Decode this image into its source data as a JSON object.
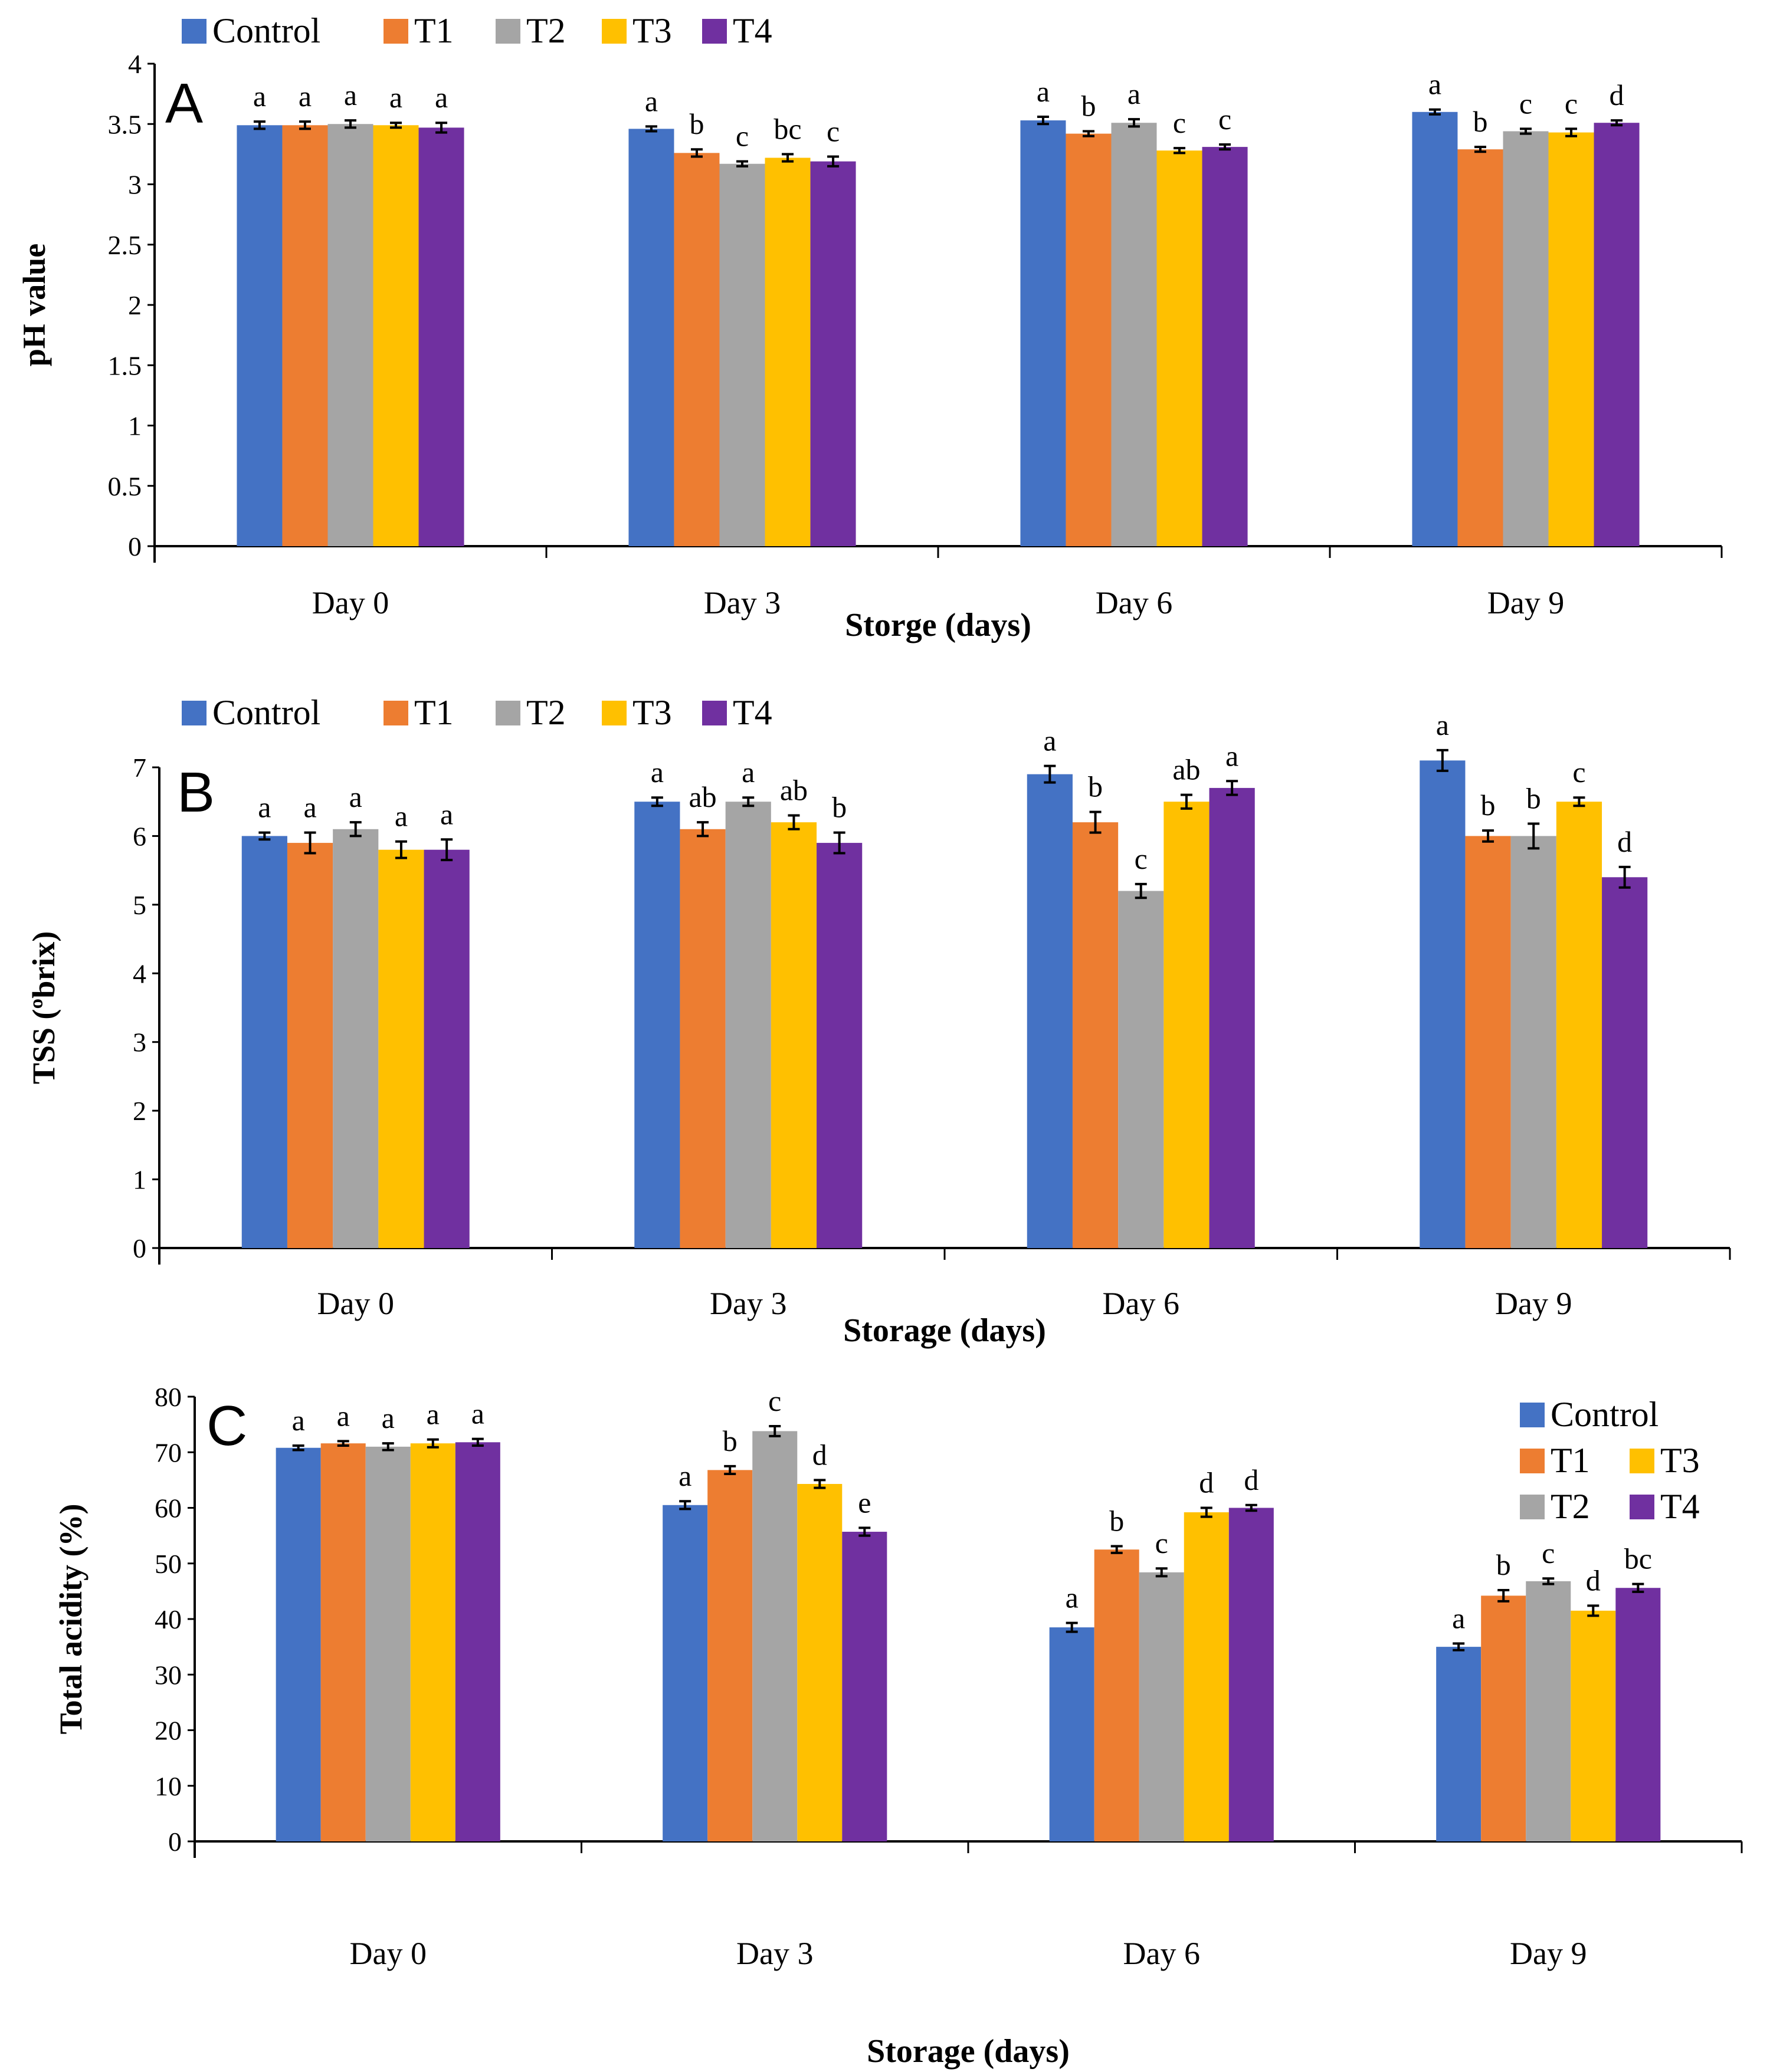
{
  "colors": {
    "Control": "#4472C4",
    "T1": "#ED7D31",
    "T2": "#A5A5A5",
    "T3": "#FFC000",
    "T4": "#7030A0"
  },
  "chart_data": [
    {
      "type": "bar",
      "panel_label": "A",
      "categories": [
        "Day 0",
        "Day 3",
        "Day 6",
        "Day 9"
      ],
      "xlabel": "Storge (days)",
      "ylabel": "pH value",
      "ylim": [
        0,
        4
      ],
      "yticks": [
        "0",
        "0.5",
        "1",
        "1.5",
        "2",
        "2.5",
        "3",
        "3.5",
        "4"
      ],
      "ytick_values": [
        0,
        0.5,
        1,
        1.5,
        2,
        2.5,
        3,
        3.5,
        4
      ],
      "legend": [
        "Control",
        "T1",
        "T2",
        "T3",
        "T4"
      ],
      "legend_position": "top-left",
      "series": [
        {
          "name": "Control",
          "values": [
            3.49,
            3.46,
            3.53,
            3.6
          ],
          "errors": [
            0.03,
            0.02,
            0.03,
            0.02
          ],
          "letters": [
            "a",
            "a",
            "a",
            "a"
          ]
        },
        {
          "name": "T1",
          "values": [
            3.49,
            3.26,
            3.42,
            3.29
          ],
          "errors": [
            0.03,
            0.03,
            0.02,
            0.02
          ],
          "letters": [
            "a",
            "b",
            "b",
            "b"
          ]
        },
        {
          "name": "T2",
          "values": [
            3.5,
            3.17,
            3.51,
            3.44
          ],
          "errors": [
            0.03,
            0.02,
            0.03,
            0.02
          ],
          "letters": [
            "a",
            "c",
            "a",
            "c"
          ]
        },
        {
          "name": "T3",
          "values": [
            3.49,
            3.22,
            3.28,
            3.43
          ],
          "errors": [
            0.02,
            0.03,
            0.02,
            0.03
          ],
          "letters": [
            "a",
            "bc",
            "c",
            "c"
          ]
        },
        {
          "name": "T4",
          "values": [
            3.47,
            3.19,
            3.31,
            3.51
          ],
          "errors": [
            0.04,
            0.04,
            0.02,
            0.02
          ],
          "letters": [
            "a",
            "c",
            "c",
            "d"
          ]
        }
      ]
    },
    {
      "type": "bar",
      "panel_label": "B",
      "categories": [
        "Day 0",
        "Day 3",
        "Day 6",
        "Day 9"
      ],
      "xlabel": "Storage (days)",
      "ylabel": "TSS (ºbrix)",
      "ylim": [
        0,
        7
      ],
      "yticks": [
        "0",
        "1",
        "2",
        "3",
        "4",
        "5",
        "6",
        "7"
      ],
      "ytick_values": [
        0,
        1,
        2,
        3,
        4,
        5,
        6,
        7
      ],
      "legend": [
        "Control",
        "T1",
        "T2",
        "T3",
        "T4"
      ],
      "legend_position": "top-left",
      "series": [
        {
          "name": "Control",
          "values": [
            6.0,
            6.5,
            6.9,
            7.1
          ],
          "errors": [
            0.05,
            0.06,
            0.12,
            0.15
          ],
          "letters": [
            "a",
            "a",
            "a",
            "a"
          ]
        },
        {
          "name": "T1",
          "values": [
            5.9,
            6.1,
            6.2,
            6.0
          ],
          "errors": [
            0.15,
            0.1,
            0.15,
            0.08
          ],
          "letters": [
            "a",
            "ab",
            "b",
            "b"
          ]
        },
        {
          "name": "T2",
          "values": [
            6.1,
            6.5,
            5.2,
            6.0
          ],
          "errors": [
            0.1,
            0.06,
            0.1,
            0.18
          ],
          "letters": [
            "a",
            "a",
            "c",
            "b"
          ]
        },
        {
          "name": "T3",
          "values": [
            5.8,
            6.2,
            6.5,
            6.5
          ],
          "errors": [
            0.12,
            0.1,
            0.1,
            0.06
          ],
          "letters": [
            "a",
            "ab",
            "ab",
            "c"
          ]
        },
        {
          "name": "T4",
          "values": [
            5.8,
            5.9,
            6.7,
            5.4
          ],
          "errors": [
            0.15,
            0.15,
            0.1,
            0.15
          ],
          "letters": [
            "a",
            "b",
            "a",
            "d"
          ]
        }
      ]
    },
    {
      "type": "bar",
      "panel_label": "C",
      "categories": [
        "Day 0",
        "Day 3",
        "Day 6",
        "Day 9"
      ],
      "xlabel": "Storage (days)",
      "ylabel": "Total acidity (%)",
      "ylim": [
        0,
        80
      ],
      "yticks": [
        "0",
        "10",
        "20",
        "30",
        "40",
        "50",
        "60",
        "70",
        "80"
      ],
      "ytick_values": [
        0,
        10,
        20,
        30,
        40,
        50,
        60,
        70,
        80
      ],
      "legend": [
        "Control",
        "T1",
        "T3",
        "T2",
        "T4"
      ],
      "legend_position": "top-right",
      "series": [
        {
          "name": "Control",
          "values": [
            70.8,
            60.5,
            38.5,
            35.0
          ],
          "errors": [
            0.4,
            0.7,
            0.8,
            0.6
          ],
          "letters": [
            "a",
            "a",
            "a",
            "a"
          ]
        },
        {
          "name": "T1",
          "values": [
            71.6,
            66.8,
            52.5,
            44.2
          ],
          "errors": [
            0.4,
            0.7,
            0.6,
            1.0
          ],
          "letters": [
            "a",
            "b",
            "b",
            "b"
          ]
        },
        {
          "name": "T2",
          "values": [
            71.0,
            73.8,
            48.4,
            46.8
          ],
          "errors": [
            0.6,
            0.9,
            0.7,
            0.5
          ],
          "letters": [
            "a",
            "c",
            "c",
            "c"
          ]
        },
        {
          "name": "T3",
          "values": [
            71.6,
            64.3,
            59.2,
            41.5
          ],
          "errors": [
            0.7,
            0.7,
            0.8,
            0.9
          ],
          "letters": [
            "a",
            "d",
            "d",
            "d"
          ]
        },
        {
          "name": "T4",
          "values": [
            71.8,
            55.7,
            60.0,
            45.6
          ],
          "errors": [
            0.6,
            0.7,
            0.5,
            0.7
          ],
          "letters": [
            "a",
            "e",
            "d",
            "bc"
          ]
        }
      ]
    }
  ]
}
